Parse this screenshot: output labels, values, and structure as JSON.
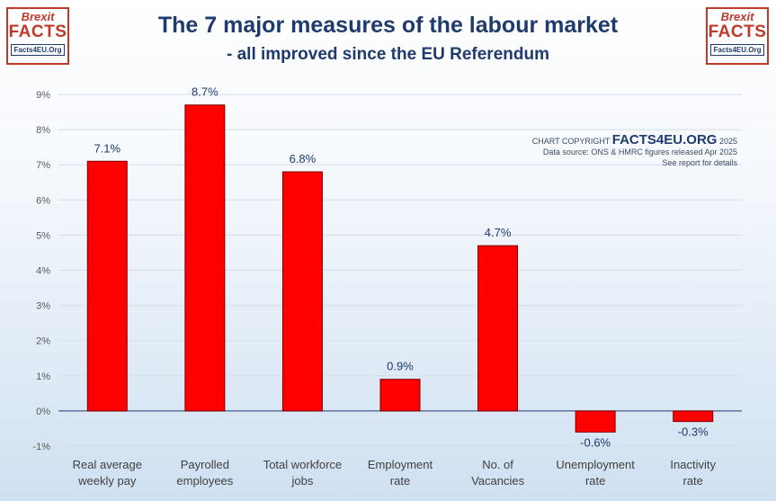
{
  "logo": {
    "line1": "Brexit",
    "line2": "FACTS",
    "line3": "Facts4EU.Org"
  },
  "header": {
    "title": "The 7 major measures of the labour market",
    "subtitle": "- all improved since the EU Referendum"
  },
  "copyright": {
    "prefix": "CHART COPYRIGHT",
    "brand": "FACTS4EU.ORG",
    "year": "2025",
    "source": "Data source: ONS & HMRC figures released Apr 2025",
    "note": "See report for details"
  },
  "chart_data": {
    "type": "bar",
    "categories": [
      [
        "Real average",
        "weekly pay"
      ],
      [
        "Payrolled",
        "employees"
      ],
      [
        "Total workforce",
        "jobs"
      ],
      [
        "Employment",
        "rate"
      ],
      [
        "No. of",
        "Vacancies"
      ],
      [
        "Unemployment",
        "rate"
      ],
      [
        "Inactivity",
        "rate"
      ]
    ],
    "values": [
      7.1,
      8.7,
      6.8,
      0.9,
      4.7,
      -0.6,
      -0.3
    ],
    "data_labels": [
      "7.1%",
      "8.7%",
      "6.8%",
      "0.9%",
      "4.7%",
      "-0.6%",
      "-0.3%"
    ],
    "yticks": [
      "-1%",
      "0%",
      "1%",
      "2%",
      "3%",
      "4%",
      "5%",
      "6%",
      "7%",
      "8%",
      "9%"
    ],
    "ylim": [
      -1,
      9
    ],
    "grid": true,
    "bar_color": "#ff0000",
    "bar_edge_color": "#7a0000",
    "label_color": "#1f3b6e"
  }
}
